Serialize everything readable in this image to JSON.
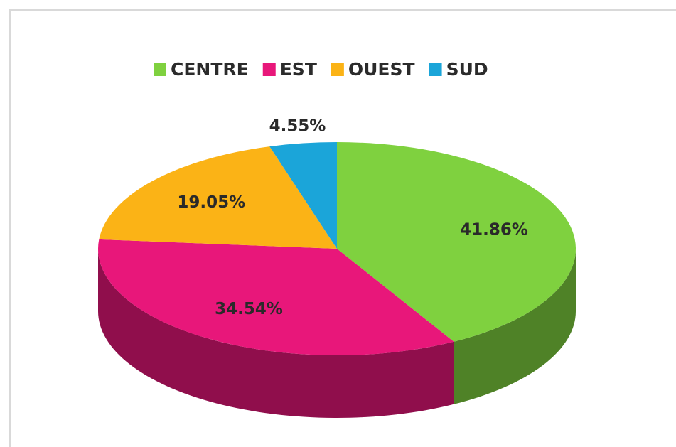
{
  "chart_data": {
    "type": "pie",
    "three_d": true,
    "categories": [
      "CENTRE",
      "EST",
      "OUEST",
      "SUD"
    ],
    "values": [
      41.86,
      34.54,
      19.05,
      4.55
    ],
    "value_labels": [
      "41.86%",
      "34.54%",
      "19.05%",
      "4.55%"
    ],
    "colors": [
      "#7fd13f",
      "#e8177a",
      "#fbb316",
      "#1ba5d9"
    ],
    "legend": "top"
  }
}
